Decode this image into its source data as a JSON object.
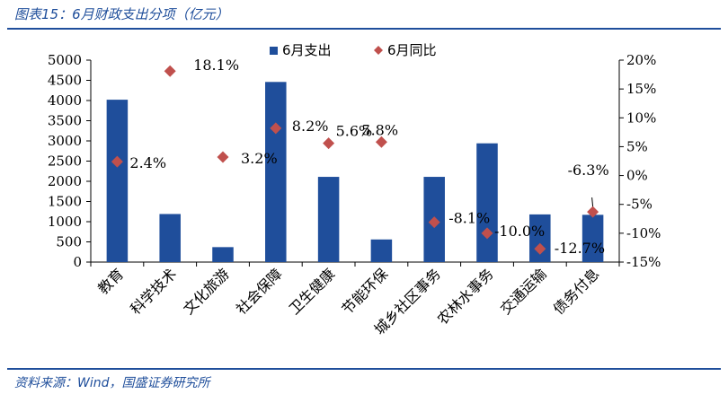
{
  "header": {
    "title": "图表15：6月财政支出分项（亿元）"
  },
  "footer": {
    "source": "资料来源：Wind，国盛证券研究所"
  },
  "chart_data": {
    "type": "bar",
    "categories": [
      "教育",
      "科学技术",
      "文化旅游",
      "社会保障",
      "卫生健康",
      "节能环保",
      "城乡社区事务",
      "农林水事务",
      "交通运输",
      "债务付息"
    ],
    "series": [
      {
        "name": "6月支出",
        "type": "bar",
        "axis": "left",
        "color": "#1f4e9b",
        "values": [
          4020,
          1190,
          370,
          4460,
          2110,
          560,
          2110,
          2940,
          1180,
          1170
        ]
      },
      {
        "name": "6月同比",
        "type": "scatter",
        "axis": "right",
        "color": "#c0504d",
        "values": [
          2.4,
          18.1,
          3.2,
          8.2,
          5.6,
          5.8,
          -8.1,
          -10.0,
          -12.7,
          -6.3
        ],
        "labels": [
          "2.4%",
          "18.1%",
          "3.2%",
          "8.2%",
          "5.6%",
          "5.8%",
          "-8.1%",
          "-10.0%",
          "-12.7%",
          "-6.3%"
        ]
      }
    ],
    "y_left": {
      "ylim": [
        0,
        5000
      ],
      "ticks": [
        0,
        500,
        1000,
        1500,
        2000,
        2500,
        3000,
        3500,
        4000,
        4500,
        5000
      ]
    },
    "y_right": {
      "ylim": [
        -15,
        20
      ],
      "ticks": [
        "-15%",
        "-10%",
        "-5%",
        "0%",
        "5%",
        "10%",
        "15%",
        "20%"
      ]
    },
    "legend": "top",
    "grid": false
  }
}
